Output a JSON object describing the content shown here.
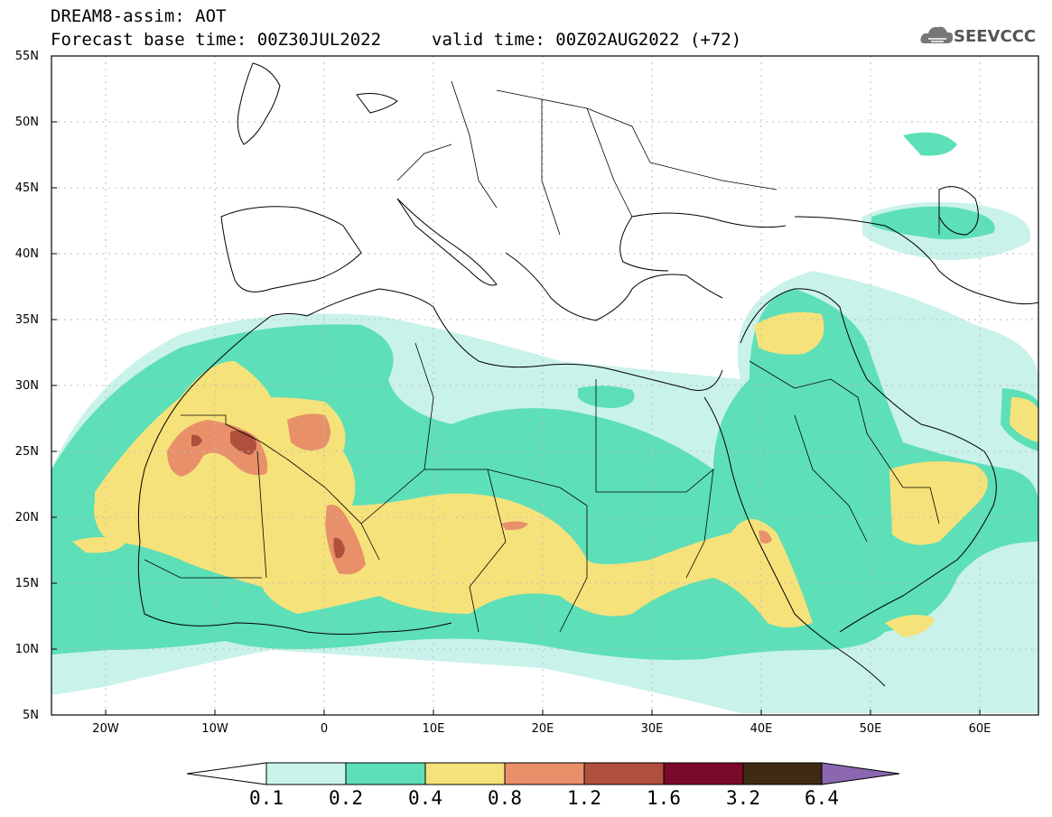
{
  "header": {
    "title": "DREAM8-assim: AOT",
    "base_time": "Forecast base time: 00Z30JUL2022",
    "valid_time": "valid time: 00Z02AUG2022 (+72)"
  },
  "logo": {
    "text": "SEEVCCC",
    "icon": "cloud-icon"
  },
  "axes": {
    "lat_labels": [
      "55N",
      "50N",
      "45N",
      "40N",
      "35N",
      "30N",
      "25N",
      "20N",
      "15N",
      "10N",
      "5N"
    ],
    "lon_labels": [
      "20W",
      "10W",
      "0",
      "10E",
      "20E",
      "30E",
      "40E",
      "50E",
      "60E"
    ]
  },
  "colorbar": {
    "labels": [
      "0.1",
      "0.2",
      "0.4",
      "0.8",
      "1.2",
      "1.6",
      "3.2",
      "6.4"
    ],
    "colors": [
      "#ffffff",
      "#c9f2ea",
      "#5ddfb8",
      "#f6e27a",
      "#e8906a",
      "#b04f3c",
      "#7a0a2a",
      "#3f2a14",
      "#8a67b0"
    ]
  },
  "fields": {
    "c01": "#c9f2ea",
    "c02": "#5ddfb8",
    "c04": "#f6e27a",
    "c08": "#e8906a",
    "c12": "#b04f3c"
  }
}
